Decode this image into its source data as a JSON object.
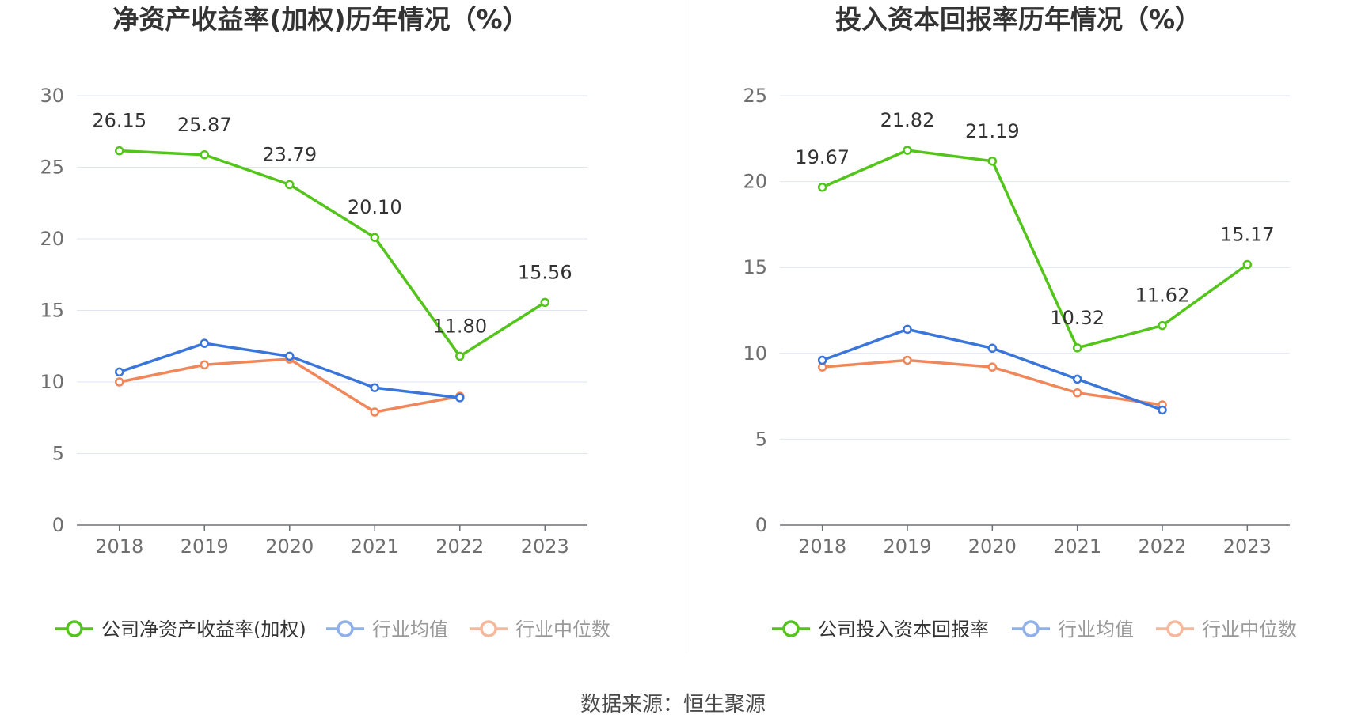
{
  "source": {
    "label": "数据来源：恒生聚源"
  },
  "chart_data": [
    {
      "type": "line",
      "title": "净资产收益率(加权)历年情况（%）",
      "xlabel": "",
      "ylabel": "",
      "categories": [
        "2018",
        "2019",
        "2020",
        "2021",
        "2022",
        "2023"
      ],
      "ylim": [
        0,
        30
      ],
      "yticks": [
        0,
        5,
        10,
        15,
        20,
        25,
        30
      ],
      "grid": true,
      "legend_position": "bottom",
      "series": [
        {
          "name": "公司净资产收益率(加权)",
          "color": "#52c41a",
          "values": [
            26.15,
            25.87,
            23.79,
            20.1,
            11.8,
            15.56
          ],
          "labels": [
            "26.15",
            "25.87",
            "23.79",
            "20.10",
            "11.80",
            "15.56"
          ],
          "show_labels": true
        },
        {
          "name": "行业均值",
          "color": "#3a75d9",
          "legend_color": "#8fb0eb",
          "values": [
            10.7,
            12.7,
            11.8,
            9.6,
            8.9,
            null
          ],
          "show_labels": false
        },
        {
          "name": "行业中位数",
          "color": "#f0875a",
          "legend_color": "#f5b89d",
          "values": [
            10.0,
            11.2,
            11.6,
            7.9,
            9.0,
            null
          ],
          "show_labels": false
        }
      ]
    },
    {
      "type": "line",
      "title": "投入资本回报率历年情况（%）",
      "xlabel": "",
      "ylabel": "",
      "categories": [
        "2018",
        "2019",
        "2020",
        "2021",
        "2022",
        "2023"
      ],
      "ylim": [
        0,
        25
      ],
      "yticks": [
        0,
        5,
        10,
        15,
        20,
        25
      ],
      "grid": true,
      "legend_position": "bottom",
      "series": [
        {
          "name": "公司投入资本回报率",
          "color": "#52c41a",
          "values": [
            19.67,
            21.82,
            21.19,
            10.32,
            11.62,
            15.17
          ],
          "labels": [
            "19.67",
            "21.82",
            "21.19",
            "10.32",
            "11.62",
            "15.17"
          ],
          "show_labels": true
        },
        {
          "name": "行业均值",
          "color": "#3a75d9",
          "legend_color": "#8fb0eb",
          "values": [
            9.6,
            11.4,
            10.3,
            8.5,
            6.7,
            null
          ],
          "show_labels": false
        },
        {
          "name": "行业中位数",
          "color": "#f0875a",
          "legend_color": "#f5b89d",
          "values": [
            9.2,
            9.6,
            9.2,
            7.7,
            7.0,
            null
          ],
          "show_labels": false
        }
      ]
    }
  ]
}
